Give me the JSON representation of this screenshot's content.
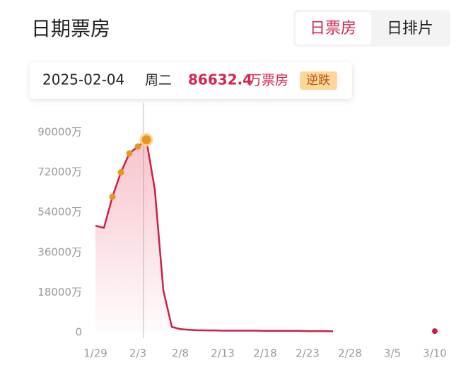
{
  "header": {
    "title": "日期票房",
    "tabs": [
      "日票房",
      "日排片"
    ]
  },
  "info": {
    "date": "2025-02-04",
    "weekday": "周二",
    "box_office": "86632.4",
    "unit": "万票房",
    "trend": "逆跌"
  },
  "chart_data": {
    "type": "line",
    "categories": [
      "1/29",
      null,
      null,
      null,
      null,
      "2/3",
      null,
      null,
      null,
      null,
      "2/8",
      null,
      null,
      null,
      null,
      "2/13",
      null,
      null,
      null,
      null,
      "2/18",
      null,
      null,
      null,
      null,
      "2/23",
      null,
      null,
      null,
      null,
      "2/28",
      null,
      null,
      null,
      null,
      "3/5",
      null,
      null,
      null,
      null,
      "3/10",
      null
    ],
    "series": [
      {
        "color": "#cc1f4a",
        "values": [
          48000,
          47000,
          61000,
          72000,
          80500,
          83600,
          86632.4,
          64200,
          19000,
          2500,
          1500,
          1200,
          1000,
          900,
          900,
          800,
          800,
          800,
          800,
          800,
          700,
          700,
          700,
          700,
          700,
          600,
          600,
          600,
          500,
          null,
          null,
          null,
          null,
          null,
          null,
          null,
          null,
          null,
          null,
          null,
          600,
          null
        ]
      }
    ],
    "ylim": [
      0,
      90000
    ],
    "yticks": [
      0,
      {
        "value": 18000,
        "label": "18000万"
      },
      {
        "value": 36000,
        "label": "36000万"
      },
      {
        "value": 54000,
        "label": "54000万"
      },
      {
        "value": 72000,
        "label": "72000万"
      },
      {
        "value": 90000,
        "label": "90000万"
      }
    ],
    "selected_color": "#e8961e"
  }
}
